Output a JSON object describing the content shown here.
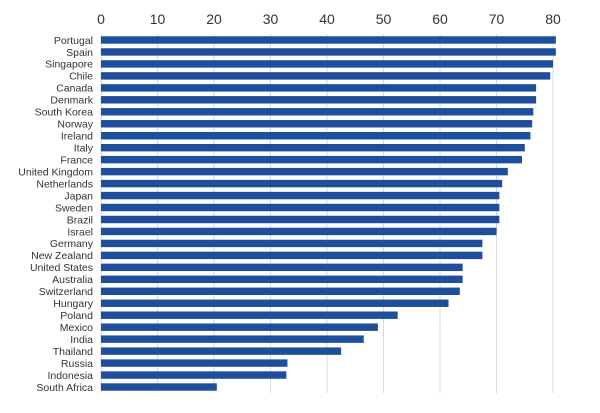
{
  "chart_data": {
    "type": "bar",
    "orientation": "horizontal",
    "title": "",
    "xlabel": "",
    "ylabel": "",
    "xlim": [
      0,
      83
    ],
    "x_ticks": [
      0,
      10,
      20,
      30,
      40,
      50,
      60,
      70,
      80
    ],
    "x_axis_position": "top",
    "grid": true,
    "bar_color": "#1f4e9c",
    "categories": [
      "Portugal",
      "Spain",
      "Singapore",
      "Chile",
      "Canada",
      "Denmark",
      "South Korea",
      "Norway",
      "Ireland",
      "Italy",
      "France",
      "United Kingdom",
      "Netherlands",
      "Japan",
      "Sweden",
      "Brazil",
      "Israel",
      "Germany",
      "New Zealand",
      "United States",
      "Australia",
      "Switzerland",
      "Hungary",
      "Poland",
      "Mexico",
      "India",
      "Thailand",
      "Russia",
      "Indonesia",
      "South Africa"
    ],
    "values": [
      80.5,
      80.5,
      80,
      79.5,
      77,
      77,
      76.5,
      76.3,
      76,
      75,
      74.5,
      72,
      71,
      70.5,
      70.5,
      70.5,
      70,
      67.5,
      67.5,
      64,
      64,
      63.5,
      61.5,
      52.5,
      49,
      46.5,
      42.5,
      33,
      32.8,
      20.5
    ]
  }
}
